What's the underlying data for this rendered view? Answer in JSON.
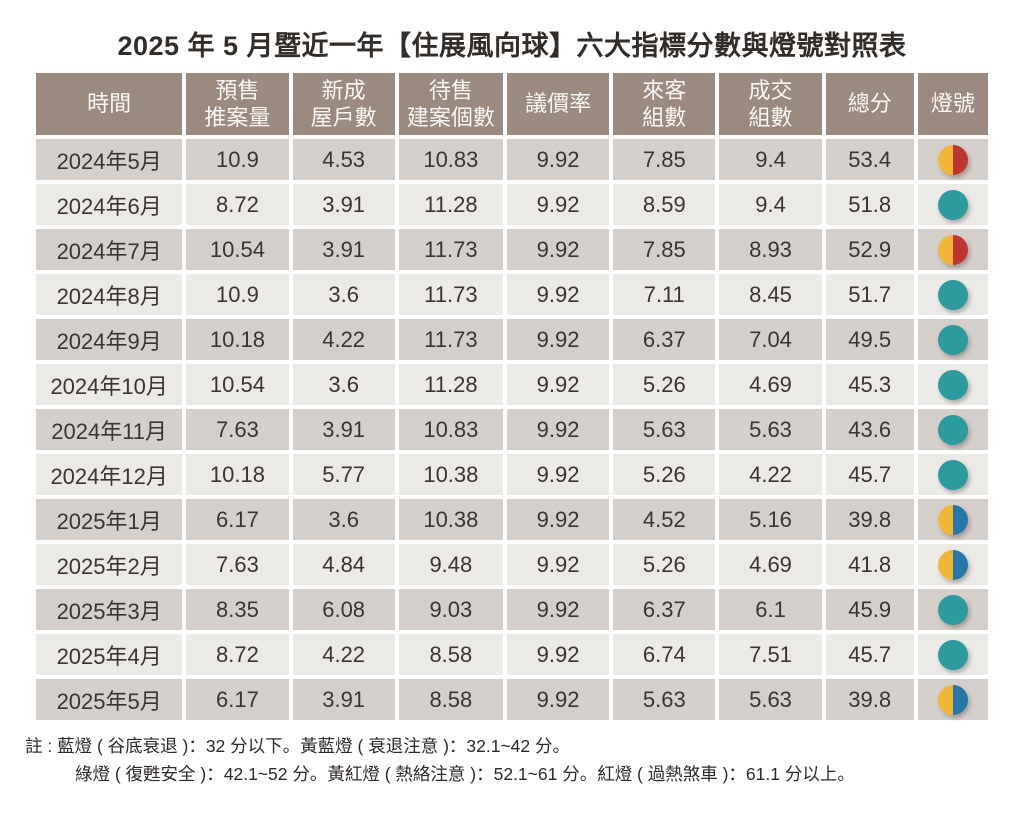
{
  "title": "2025 年 5 月暨近一年【住展風向球】六大指標分數與燈號對照表",
  "table": {
    "headers": [
      "時間",
      "預售\n推案量",
      "新成\n屋戶數",
      "待售\n建案個數",
      "議價率",
      "來客\n組數",
      "成交\n組數",
      "總分",
      "燈號"
    ],
    "rows": [
      {
        "time": "2024年5月",
        "values": [
          "10.9",
          "4.53",
          "10.83",
          "9.92",
          "7.85",
          "9.4",
          "53.4"
        ],
        "light": "yellow-red"
      },
      {
        "time": "2024年6月",
        "values": [
          "8.72",
          "3.91",
          "11.28",
          "9.92",
          "8.59",
          "9.4",
          "51.8"
        ],
        "light": "green"
      },
      {
        "time": "2024年7月",
        "values": [
          "10.54",
          "3.91",
          "11.73",
          "9.92",
          "7.85",
          "8.93",
          "52.9"
        ],
        "light": "yellow-red"
      },
      {
        "time": "2024年8月",
        "values": [
          "10.9",
          "3.6",
          "11.73",
          "9.92",
          "7.11",
          "8.45",
          "51.7"
        ],
        "light": "green"
      },
      {
        "time": "2024年9月",
        "values": [
          "10.18",
          "4.22",
          "11.73",
          "9.92",
          "6.37",
          "7.04",
          "49.5"
        ],
        "light": "green"
      },
      {
        "time": "2024年10月",
        "values": [
          "10.54",
          "3.6",
          "11.28",
          "9.92",
          "5.26",
          "4.69",
          "45.3"
        ],
        "light": "green"
      },
      {
        "time": "2024年11月",
        "values": [
          "7.63",
          "3.91",
          "10.83",
          "9.92",
          "5.63",
          "5.63",
          "43.6"
        ],
        "light": "green"
      },
      {
        "time": "2024年12月",
        "values": [
          "10.18",
          "5.77",
          "10.38",
          "9.92",
          "5.26",
          "4.22",
          "45.7"
        ],
        "light": "green"
      },
      {
        "time": "2025年1月",
        "values": [
          "6.17",
          "3.6",
          "10.38",
          "9.92",
          "4.52",
          "5.16",
          "39.8"
        ],
        "light": "yellow-blue"
      },
      {
        "time": "2025年2月",
        "values": [
          "7.63",
          "4.84",
          "9.48",
          "9.92",
          "5.26",
          "4.69",
          "41.8"
        ],
        "light": "yellow-blue"
      },
      {
        "time": "2025年3月",
        "values": [
          "8.35",
          "6.08",
          "9.03",
          "9.92",
          "6.37",
          "6.1",
          "45.9"
        ],
        "light": "green"
      },
      {
        "time": "2025年4月",
        "values": [
          "8.72",
          "4.22",
          "8.58",
          "9.92",
          "6.74",
          "7.51",
          "45.7"
        ],
        "light": "green"
      },
      {
        "time": "2025年5月",
        "values": [
          "6.17",
          "3.91",
          "8.58",
          "9.92",
          "5.63",
          "5.63",
          "39.8"
        ],
        "light": "yellow-blue"
      }
    ]
  },
  "lights": {
    "green": {
      "label": "綠燈",
      "left": "#2b9b9e",
      "right": "#2b9b9e"
    },
    "yellow-red": {
      "label": "黃紅燈",
      "left": "#f2b634",
      "right": "#c03431"
    },
    "yellow-blue": {
      "label": "黃藍燈",
      "left": "#f2b634",
      "right": "#2477a7"
    }
  },
  "colors": {
    "header_bg": "#9a8a80",
    "row_odd_bg": "#d5cfcb",
    "row_even_bg": "#eceae7",
    "text": "#3c3431",
    "header_text": "#faf7f4"
  },
  "notes": [
    "註 : 藍燈 ( 谷底衰退 )：32 分以下。黃藍燈 ( 衰退注意 )：32.1~42 分。",
    "綠燈 ( 復甦安全 )：42.1~52 分。黃紅燈 ( 熱絡注意 )：52.1~61 分。紅燈 ( 過熱煞車 )：61.1 分以上。"
  ],
  "chart_data": {
    "type": "table",
    "title": "2025 年 5 月暨近一年【住展風向球】六大指標分數與燈號對照表",
    "columns": [
      "時間",
      "預售推案量",
      "新成屋戶數",
      "待售建案個數",
      "議價率",
      "來客組數",
      "成交組數",
      "總分",
      "燈號"
    ],
    "rows": [
      [
        "2024年5月",
        10.9,
        4.53,
        10.83,
        9.92,
        7.85,
        9.4,
        53.4,
        "黃紅燈"
      ],
      [
        "2024年6月",
        8.72,
        3.91,
        11.28,
        9.92,
        8.59,
        9.4,
        51.8,
        "綠燈"
      ],
      [
        "2024年7月",
        10.54,
        3.91,
        11.73,
        9.92,
        7.85,
        8.93,
        52.9,
        "黃紅燈"
      ],
      [
        "2024年8月",
        10.9,
        3.6,
        11.73,
        9.92,
        7.11,
        8.45,
        51.7,
        "綠燈"
      ],
      [
        "2024年9月",
        10.18,
        4.22,
        11.73,
        9.92,
        6.37,
        7.04,
        49.5,
        "綠燈"
      ],
      [
        "2024年10月",
        10.54,
        3.6,
        11.28,
        9.92,
        5.26,
        4.69,
        45.3,
        "綠燈"
      ],
      [
        "2024年11月",
        7.63,
        3.91,
        10.83,
        9.92,
        5.63,
        5.63,
        43.6,
        "綠燈"
      ],
      [
        "2024年12月",
        10.18,
        5.77,
        10.38,
        9.92,
        5.26,
        4.22,
        45.7,
        "綠燈"
      ],
      [
        "2025年1月",
        6.17,
        3.6,
        10.38,
        9.92,
        4.52,
        5.16,
        39.8,
        "黃藍燈"
      ],
      [
        "2025年2月",
        7.63,
        4.84,
        9.48,
        9.92,
        5.26,
        4.69,
        41.8,
        "黃藍燈"
      ],
      [
        "2025年3月",
        8.35,
        6.08,
        9.03,
        9.92,
        6.37,
        6.1,
        45.9,
        "綠燈"
      ],
      [
        "2025年4月",
        8.72,
        4.22,
        8.58,
        9.92,
        6.74,
        7.51,
        45.7,
        "綠燈"
      ],
      [
        "2025年5月",
        6.17,
        3.91,
        8.58,
        9.92,
        5.63,
        5.63,
        39.8,
        "黃藍燈"
      ]
    ],
    "annotations": [
      "註 : 藍燈 ( 谷底衰退 )：32 分以下。黃藍燈 ( 衰退注意 )：32.1~42 分。",
      "綠燈 ( 復甦安全 )：42.1~52 分。黃紅燈 ( 熱絡注意 )：52.1~61 分。紅燈 ( 過熱煞車 )：61.1 分以上。"
    ]
  }
}
